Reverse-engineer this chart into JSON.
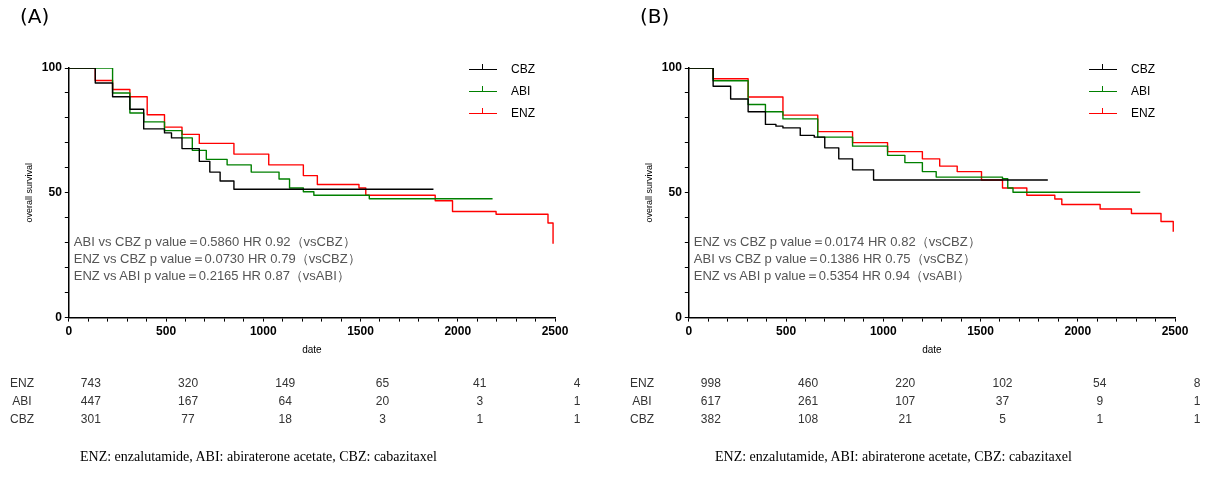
{
  "chart_data": [
    {
      "type": "step",
      "title": "(A)",
      "xlabel": "date",
      "ylabel": "overall survival",
      "xlim": [
        0,
        2500
      ],
      "ylim": [
        0,
        100
      ],
      "xticks": [
        0,
        {
          "value": 100,
          "label": null
        },
        {
          "value": 200,
          "label": null
        },
        {
          "value": 300,
          "label": null
        },
        {
          "value": 400,
          "label": null
        },
        500,
        {
          "value": 600,
          "label": null
        },
        {
          "value": 700,
          "label": null
        },
        {
          "value": 800,
          "label": null
        },
        {
          "value": 900,
          "label": null
        },
        1000,
        {
          "value": 1100,
          "label": null
        },
        {
          "value": 1200,
          "label": null
        },
        {
          "value": 1300,
          "label": null
        },
        {
          "value": 1400,
          "label": null
        },
        1500,
        {
          "value": 1600,
          "label": null
        },
        {
          "value": 1700,
          "label": null
        },
        {
          "value": 1800,
          "label": null
        },
        {
          "value": 1900,
          "label": null
        },
        2000,
        {
          "value": 2100,
          "label": null
        },
        {
          "value": 2200,
          "label": null
        },
        {
          "value": 2300,
          "label": null
        },
        {
          "value": 2400,
          "label": null
        },
        2500
      ],
      "yticks": [
        0,
        {
          "value": 10,
          "label": null
        },
        {
          "value": 20,
          "label": null
        },
        {
          "value": 30,
          "label": null
        },
        {
          "value": 40,
          "label": null
        },
        50,
        {
          "value": 60,
          "label": null
        },
        {
          "value": 70,
          "label": null
        },
        {
          "value": 80,
          "label": null
        },
        {
          "value": 90,
          "label": null
        },
        100
      ],
      "legend": "top right",
      "grid": false,
      "series": [
        {
          "name": "CBZ",
          "color": "#000000",
          "x": [
            0,
            136,
            225,
            314,
            385,
            492,
            528,
            582,
            671,
            725,
            778,
            849,
            1875
          ],
          "values": [
            100,
            94,
            88.5,
            83.5,
            75.6,
            74,
            72,
            67.7,
            62.6,
            58.3,
            54.7,
            51.4,
            51.4
          ]
        },
        {
          "name": "ABI",
          "color": "#008000",
          "x": [
            0,
            225,
            314,
            385,
            492,
            582,
            635,
            707,
            814,
            938,
            1081,
            1135,
            1206,
            1260,
            1545,
            2179
          ],
          "values": [
            100,
            90,
            82,
            78.4,
            74.9,
            72,
            67,
            63.4,
            61.2,
            58.3,
            55.5,
            51.9,
            50.4,
            49,
            47.6,
            47.6
          ]
        },
        {
          "name": "ENZ",
          "color": "#ff0000",
          "x": [
            0,
            136,
            225,
            314,
            403,
            492,
            582,
            671,
            849,
            1028,
            1206,
            1278,
            1492,
            1527,
            1884,
            1973,
            2197,
            2464,
            2490
          ],
          "values": [
            100,
            95,
            91.4,
            88.5,
            81.3,
            76.3,
            73.4,
            69.8,
            65.5,
            61.2,
            56.9,
            53.3,
            51.9,
            49,
            46.8,
            42.5,
            41.4,
            37.9,
            29.6
          ]
        }
      ],
      "annotations": [
        "ABI vs CBZ p value＝0.5860 HR 0.92（vsCBZ）",
        "ENZ vs CBZ p value＝0.0730 HR 0.79（vsCBZ）",
        "ENZ vs ABI p value＝0.2165 HR 0.87（vsABI）",
        "ENZ 743 320 149 65 41 4",
        "ABI 447 167 64 20 3 1",
        "CBZ 301 77 18 3 1 1",
        "ENZ: enzalutamide, ABI: abiraterone acetate, CBZ: cabazitaxel"
      ]
    },
    {
      "type": "step",
      "title": "(B)",
      "xlabel": "date",
      "ylabel": "overall survival",
      "xlim": [
        0,
        2500
      ],
      "ylim": [
        0,
        100
      ],
      "xticks": [
        0,
        {
          "value": 100,
          "label": null
        },
        {
          "value": 200,
          "label": null
        },
        {
          "value": 300,
          "label": null
        },
        {
          "value": 400,
          "label": null
        },
        500,
        {
          "value": 600,
          "label": null
        },
        {
          "value": 700,
          "label": null
        },
        {
          "value": 800,
          "label": null
        },
        {
          "value": 900,
          "label": null
        },
        1000,
        {
          "value": 1100,
          "label": null
        },
        {
          "value": 1200,
          "label": null
        },
        {
          "value": 1300,
          "label": null
        },
        {
          "value": 1400,
          "label": null
        },
        1500,
        {
          "value": 1600,
          "label": null
        },
        {
          "value": 1700,
          "label": null
        },
        {
          "value": 1800,
          "label": null
        },
        {
          "value": 1900,
          "label": null
        },
        2000,
        {
          "value": 2100,
          "label": null
        },
        {
          "value": 2200,
          "label": null
        },
        {
          "value": 2300,
          "label": null
        },
        {
          "value": 2400,
          "label": null
        },
        2500
      ],
      "yticks": [
        0,
        {
          "value": 10,
          "label": null
        },
        {
          "value": 20,
          "label": null
        },
        {
          "value": 30,
          "label": null
        },
        {
          "value": 40,
          "label": null
        },
        50,
        {
          "value": 60,
          "label": null
        },
        {
          "value": 70,
          "label": null
        },
        {
          "value": 80,
          "label": null
        },
        {
          "value": 90,
          "label": null
        },
        100
      ],
      "legend": "top right",
      "grid": false,
      "series": [
        {
          "name": "CBZ",
          "color": "#000000",
          "x": [
            0,
            125,
            215,
            305,
            394,
            448,
            484,
            573,
            645,
            699,
            771,
            842,
            950,
            1846
          ],
          "values": [
            100,
            92.7,
            87.6,
            82.5,
            77.4,
            76.7,
            76,
            73,
            72.3,
            68,
            63.6,
            59.2,
            55.1,
            55.1
          ]
        },
        {
          "name": "ABI",
          "color": "#008000",
          "x": [
            0,
            125,
            305,
            394,
            484,
            663,
            842,
            1022,
            1111,
            1201,
            1272,
            1613,
            1640,
            1667,
            2321
          ],
          "values": [
            100,
            94.9,
            85.4,
            82.5,
            79.6,
            72.3,
            68.7,
            65,
            62.1,
            58.5,
            56.3,
            55.6,
            51.9,
            50.2,
            50.2
          ]
        },
        {
          "name": "ENZ",
          "color": "#ff0000",
          "x": [
            0,
            125,
            305,
            484,
            663,
            842,
            1022,
            1201,
            1290,
            1380,
            1505,
            1613,
            1738,
            1882,
            1918,
            2115,
            2276,
            2428,
            2491
          ],
          "values": [
            100,
            95.7,
            88.4,
            81.1,
            74.5,
            70.1,
            66.5,
            63.6,
            60.7,
            58.5,
            55.1,
            51.9,
            49,
            47.5,
            45.3,
            43.5,
            41.7,
            38.5,
            34.4
          ]
        }
      ],
      "annotations": [
        "ENZ vs CBZ p value＝0.0174 HR 0.82（vsCBZ）",
        "ABI vs CBZ p value＝0.1386 HR 0.75（vsCBZ）",
        "ENZ vs ABI p value＝0.5354 HR 0.94（vsABI）",
        "ENZ 998 460 220 102 54 8",
        "ABI 617 261 107 37 9 1",
        "CBZ 382 108 21 5 1 1",
        "ENZ: enzalutamide, ABI: abiraterone acetate, CBZ: cabazitaxel"
      ]
    }
  ]
}
